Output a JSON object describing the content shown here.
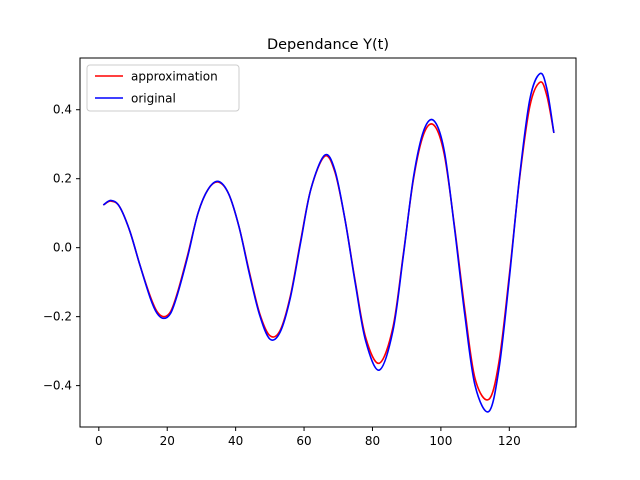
{
  "chart_data": {
    "type": "line",
    "title": "Dependance Y(t)",
    "xlabel": "",
    "ylabel": "",
    "xlim": [
      -5.5,
      139.5
    ],
    "ylim": [
      -0.52,
      0.55
    ],
    "xticks": [
      0,
      20,
      40,
      60,
      80,
      100,
      120
    ],
    "xtick_labels": [
      "0",
      "20",
      "40",
      "60",
      "80",
      "100",
      "120"
    ],
    "yticks": [
      -0.4,
      -0.2,
      0.0,
      0.2,
      0.4
    ],
    "ytick_labels": [
      "−0.4",
      "−0.2",
      "0.0",
      "0.2",
      "0.4"
    ],
    "grid": false,
    "legend_position": "upper-left",
    "series": [
      {
        "name": "approximation",
        "color": "#ff0000",
        "x": [
          1.5,
          3.5,
          6,
          9,
          12,
          15,
          17,
          19,
          21,
          23,
          26,
          29,
          32,
          35,
          38,
          41,
          44,
          47,
          50,
          53,
          56,
          59,
          62,
          66,
          69,
          72,
          75,
          78,
          82,
          86,
          89,
          92,
          95,
          98,
          101,
          104,
          107,
          110,
          114,
          117,
          120,
          123,
          126,
          129,
          131,
          133
        ],
        "y": [
          0.125,
          0.135,
          0.12,
          0.05,
          -0.05,
          -0.14,
          -0.185,
          -0.2,
          -0.185,
          -0.13,
          -0.02,
          0.1,
          0.17,
          0.19,
          0.155,
          0.06,
          -0.07,
          -0.19,
          -0.255,
          -0.24,
          -0.14,
          0.02,
          0.17,
          0.265,
          0.22,
          0.08,
          -0.1,
          -0.26,
          -0.335,
          -0.23,
          -0.02,
          0.2,
          0.33,
          0.355,
          0.27,
          0.06,
          -0.18,
          -0.38,
          -0.44,
          -0.33,
          -0.08,
          0.2,
          0.41,
          0.48,
          0.44,
          0.335
        ]
      },
      {
        "name": "original",
        "color": "#0000ff",
        "x": [
          1.5,
          3.5,
          6,
          9,
          12,
          15,
          17,
          19,
          21,
          23,
          26,
          29,
          32,
          35,
          38,
          41,
          44,
          47,
          50,
          53,
          56,
          59,
          62,
          66,
          69,
          72,
          75,
          78,
          82,
          86,
          89,
          92,
          95,
          98,
          101,
          104,
          107,
          110,
          114,
          117,
          120,
          123,
          126,
          129,
          131,
          133
        ],
        "y": [
          0.125,
          0.137,
          0.12,
          0.05,
          -0.05,
          -0.145,
          -0.19,
          -0.205,
          -0.19,
          -0.135,
          -0.025,
          0.1,
          0.17,
          0.192,
          0.155,
          0.06,
          -0.075,
          -0.195,
          -0.265,
          -0.245,
          -0.145,
          0.015,
          0.17,
          0.268,
          0.225,
          0.08,
          -0.105,
          -0.27,
          -0.355,
          -0.24,
          -0.025,
          0.205,
          0.34,
          0.368,
          0.28,
          0.055,
          -0.195,
          -0.4,
          -0.475,
          -0.35,
          -0.09,
          0.205,
          0.43,
          0.505,
          0.46,
          0.335
        ]
      }
    ]
  }
}
